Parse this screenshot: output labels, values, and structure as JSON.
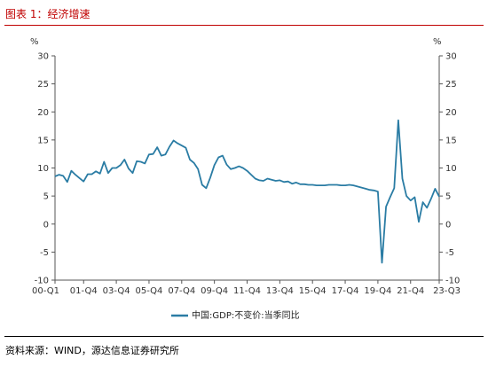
{
  "figure": {
    "title": "图表 1：经济增速",
    "source": "资料来源：WIND，源达信息证券研究所"
  },
  "colors": {
    "accent": "#c00000",
    "series": "#2a7ca4",
    "axis": "#555555"
  },
  "chart_data": {
    "type": "line",
    "left_unit": "%",
    "right_unit": "%",
    "ylim": [
      -10,
      30
    ],
    "yticks": [
      -10,
      -5,
      0,
      5,
      10,
      15,
      20,
      25,
      30
    ],
    "xlim": [
      2000.0,
      2023.5
    ],
    "xticks": [
      {
        "label": "00-Q1",
        "x": 2000.0
      },
      {
        "label": "01-Q4",
        "x": 2001.75
      },
      {
        "label": "03-Q4",
        "x": 2003.75
      },
      {
        "label": "05-Q4",
        "x": 2005.75
      },
      {
        "label": "07-Q4",
        "x": 2007.75
      },
      {
        "label": "09-Q4",
        "x": 2009.75
      },
      {
        "label": "11-Q4",
        "x": 2011.75
      },
      {
        "label": "13-Q4",
        "x": 2013.75
      },
      {
        "label": "15-Q4",
        "x": 2015.75
      },
      {
        "label": "17-Q4",
        "x": 2017.75
      },
      {
        "label": "19-Q4",
        "x": 2019.75
      },
      {
        "label": "21-Q4",
        "x": 2021.75
      },
      {
        "label": "23-Q3",
        "x": 2023.5
      }
    ],
    "grid": false,
    "legend_position": "bottom-center",
    "series": [
      {
        "name": "中国:GDP:不变价:当季同比",
        "points": [
          [
            2000.0,
            8.5
          ],
          [
            2000.25,
            8.8
          ],
          [
            2000.5,
            8.6
          ],
          [
            2000.75,
            7.5
          ],
          [
            2001.0,
            9.5
          ],
          [
            2001.25,
            8.8
          ],
          [
            2001.5,
            8.2
          ],
          [
            2001.75,
            7.6
          ],
          [
            2002.0,
            8.9
          ],
          [
            2002.25,
            8.9
          ],
          [
            2002.5,
            9.4
          ],
          [
            2002.75,
            9.0
          ],
          [
            2003.0,
            11.1
          ],
          [
            2003.25,
            9.1
          ],
          [
            2003.5,
            10.0
          ],
          [
            2003.75,
            10.0
          ],
          [
            2004.0,
            10.5
          ],
          [
            2004.25,
            11.5
          ],
          [
            2004.5,
            9.9
          ],
          [
            2004.75,
            9.1
          ],
          [
            2005.0,
            11.2
          ],
          [
            2005.25,
            11.1
          ],
          [
            2005.5,
            10.8
          ],
          [
            2005.75,
            12.4
          ],
          [
            2006.0,
            12.5
          ],
          [
            2006.25,
            13.7
          ],
          [
            2006.5,
            12.2
          ],
          [
            2006.75,
            12.4
          ],
          [
            2007.0,
            13.8
          ],
          [
            2007.25,
            14.9
          ],
          [
            2007.5,
            14.4
          ],
          [
            2007.75,
            14.0
          ],
          [
            2008.0,
            13.6
          ],
          [
            2008.25,
            11.5
          ],
          [
            2008.5,
            10.9
          ],
          [
            2008.75,
            9.8
          ],
          [
            2009.0,
            7.0
          ],
          [
            2009.25,
            6.4
          ],
          [
            2009.5,
            8.3
          ],
          [
            2009.75,
            10.5
          ],
          [
            2010.0,
            11.9
          ],
          [
            2010.25,
            12.2
          ],
          [
            2010.5,
            10.6
          ],
          [
            2010.75,
            9.8
          ],
          [
            2011.0,
            10.0
          ],
          [
            2011.25,
            10.3
          ],
          [
            2011.5,
            10.0
          ],
          [
            2011.75,
            9.5
          ],
          [
            2012.0,
            8.8
          ],
          [
            2012.25,
            8.1
          ],
          [
            2012.5,
            7.8
          ],
          [
            2012.75,
            7.7
          ],
          [
            2013.0,
            8.1
          ],
          [
            2013.25,
            7.9
          ],
          [
            2013.5,
            7.7
          ],
          [
            2013.75,
            7.8
          ],
          [
            2014.0,
            7.5
          ],
          [
            2014.25,
            7.6
          ],
          [
            2014.5,
            7.2
          ],
          [
            2014.75,
            7.4
          ],
          [
            2015.0,
            7.1
          ],
          [
            2015.25,
            7.1
          ],
          [
            2015.5,
            7.0
          ],
          [
            2015.75,
            7.0
          ],
          [
            2016.0,
            6.9
          ],
          [
            2016.25,
            6.9
          ],
          [
            2016.5,
            6.9
          ],
          [
            2016.75,
            7.0
          ],
          [
            2017.0,
            7.0
          ],
          [
            2017.25,
            7.0
          ],
          [
            2017.5,
            6.9
          ],
          [
            2017.75,
            6.9
          ],
          [
            2018.0,
            7.0
          ],
          [
            2018.25,
            6.9
          ],
          [
            2018.5,
            6.7
          ],
          [
            2018.75,
            6.5
          ],
          [
            2019.0,
            6.3
          ],
          [
            2019.25,
            6.1
          ],
          [
            2019.5,
            6.0
          ],
          [
            2019.75,
            5.8
          ],
          [
            2020.0,
            -6.9
          ],
          [
            2020.25,
            3.1
          ],
          [
            2020.5,
            4.8
          ],
          [
            2020.75,
            6.4
          ],
          [
            2021.0,
            18.5
          ],
          [
            2021.25,
            8.1
          ],
          [
            2021.5,
            5.0
          ],
          [
            2021.75,
            4.2
          ],
          [
            2022.0,
            4.8
          ],
          [
            2022.25,
            0.4
          ],
          [
            2022.5,
            3.9
          ],
          [
            2022.75,
            2.9
          ],
          [
            2023.0,
            4.5
          ],
          [
            2023.25,
            6.3
          ],
          [
            2023.5,
            4.9
          ]
        ]
      }
    ]
  }
}
